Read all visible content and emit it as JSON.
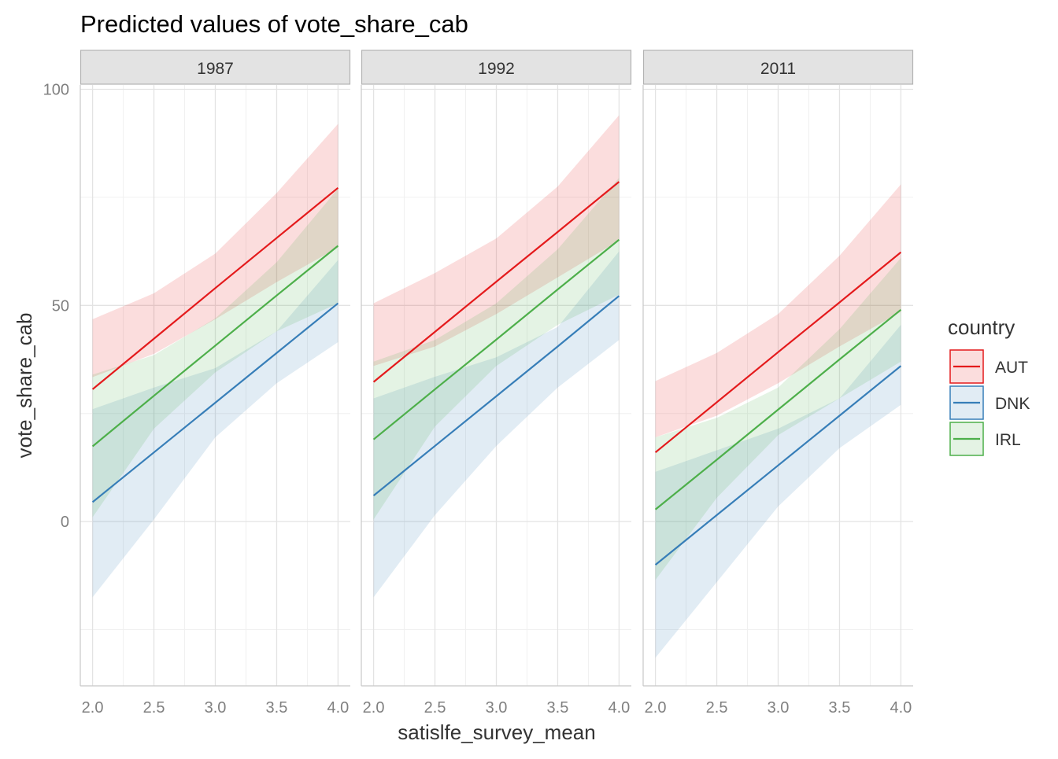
{
  "chart_data": {
    "type": "line",
    "title": "Predicted values of vote_share_cab",
    "xlabel": "satislfe_survey_mean",
    "ylabel": "vote_share_cab",
    "xlim": [
      1.9,
      4.1
    ],
    "ylim": [
      -38,
      101
    ],
    "x_ticks": [
      2.0,
      2.5,
      3.0,
      3.5,
      4.0
    ],
    "x_tick_labels": [
      "2.0",
      "2.5",
      "3.0",
      "3.5",
      "4.0"
    ],
    "y_ticks": [
      0,
      50,
      100
    ],
    "y_tick_labels": [
      "0",
      "50",
      "100"
    ],
    "grid": true,
    "x": [
      2.0,
      2.5,
      3.0,
      3.5,
      4.0
    ],
    "legend": {
      "title": "country",
      "placement": "right",
      "entries": [
        "AUT",
        "DNK",
        "IRL"
      ]
    },
    "colors": {
      "AUT": "#e41a1c",
      "DNK": "#377eb8",
      "IRL": "#4daf4a"
    },
    "panels": [
      {
        "label": "1987",
        "series": [
          {
            "name": "AUT",
            "values": [
              30.6,
              42.3,
              54.0,
              65.6,
              77.2
            ],
            "lower": [
              33.4,
              38.8,
              46.8,
              55.4,
              63.4
            ],
            "upper": [
              46.8,
              52.8,
              62.0,
              76.0,
              92.0
            ]
          },
          {
            "name": "DNK",
            "values": [
              4.5,
              16.0,
              27.5,
              39.0,
              50.5
            ],
            "lower": [
              -17.5,
              0.5,
              19.5,
              32.0,
              41.5
            ],
            "upper": [
              26.0,
              31.0,
              35.5,
              44.0,
              60.5
            ]
          },
          {
            "name": "IRL",
            "values": [
              17.4,
              29.1,
              40.7,
              52.3,
              63.8
            ],
            "lower": [
              1.0,
              21.5,
              34.5,
              44.0,
              50.5
            ],
            "upper": [
              34.0,
              38.5,
              47.0,
              60.0,
              77.0
            ]
          }
        ]
      },
      {
        "label": "1992",
        "series": [
          {
            "name": "AUT",
            "values": [
              32.3,
              43.9,
              55.5,
              67.0,
              78.6
            ],
            "lower": [
              36.0,
              40.5,
              48.0,
              56.5,
              65.0
            ],
            "upper": [
              50.5,
              57.5,
              65.5,
              77.5,
              94.0
            ]
          },
          {
            "name": "DNK",
            "values": [
              6.0,
              17.5,
              29.0,
              40.5,
              52.2
            ],
            "lower": [
              -17.5,
              1.5,
              17.5,
              31.0,
              42.0
            ],
            "upper": [
              28.5,
              33.5,
              38.0,
              45.0,
              62.5
            ]
          },
          {
            "name": "IRL",
            "values": [
              19.0,
              30.6,
              42.1,
              53.7,
              65.2
            ],
            "lower": [
              0.5,
              22.0,
              36.0,
              45.5,
              52.5
            ],
            "upper": [
              37.0,
              42.0,
              50.5,
              63.0,
              79.5
            ]
          }
        ]
      },
      {
        "label": "2011",
        "series": [
          {
            "name": "AUT",
            "values": [
              16.0,
              27.6,
              39.2,
              50.7,
              62.3
            ],
            "lower": [
              19.5,
              24.5,
              32.0,
              40.5,
              48.5
            ],
            "upper": [
              32.5,
              39.0,
              48.0,
              61.5,
              78.0
            ]
          },
          {
            "name": "DNK",
            "values": [
              -10.0,
              1.5,
              13.0,
              24.5,
              36.0
            ],
            "lower": [
              -31.5,
              -14.0,
              3.5,
              17.0,
              27.0
            ],
            "upper": [
              11.5,
              16.5,
              21.5,
              28.5,
              45.5
            ]
          },
          {
            "name": "IRL",
            "values": [
              2.8,
              14.3,
              25.9,
              37.5,
              49.0
            ],
            "lower": [
              -13.5,
              5.5,
              20.0,
              28.5,
              37.0
            ],
            "upper": [
              19.5,
              24.0,
              31.0,
              44.5,
              61.0
            ]
          }
        ]
      }
    ]
  }
}
